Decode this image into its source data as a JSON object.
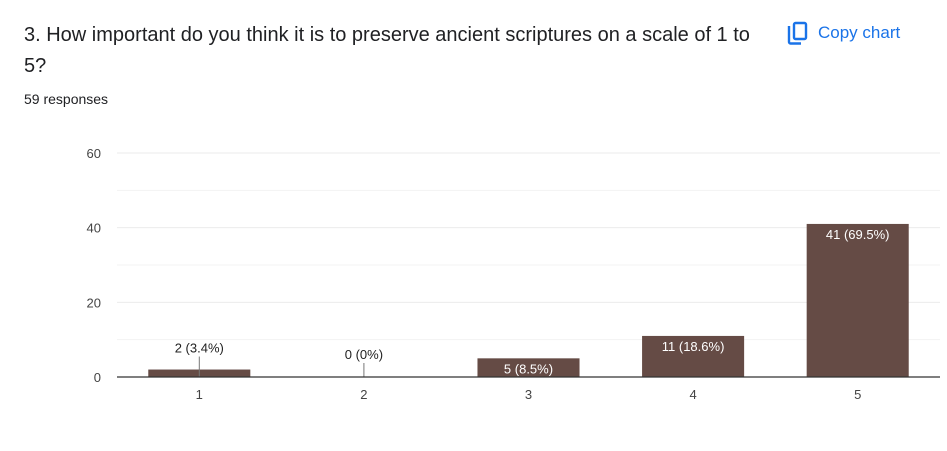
{
  "question": {
    "title": "3. How important do you think it is to preserve ancient scriptures on a scale of 1 to 5?",
    "responses": "59 responses"
  },
  "copy_chart": {
    "label": "Copy chart",
    "icon": "copy-icon"
  },
  "colors": {
    "bar": "#654b45",
    "accent": "#1a73e8",
    "grid": "#ebebeb",
    "axis": "#333333"
  },
  "chart_data": {
    "type": "bar",
    "categories": [
      "1",
      "2",
      "3",
      "4",
      "5"
    ],
    "values": [
      2,
      0,
      5,
      11,
      41
    ],
    "data_labels": [
      "2 (3.4%)",
      "0 (0%)",
      "5 (8.5%)",
      "11 (18.6%)",
      "41 (69.5%)"
    ],
    "ylim": [
      0,
      60
    ],
    "yticks": [
      0,
      20,
      40,
      60
    ],
    "grid": true,
    "xlabel": "",
    "ylabel": ""
  }
}
